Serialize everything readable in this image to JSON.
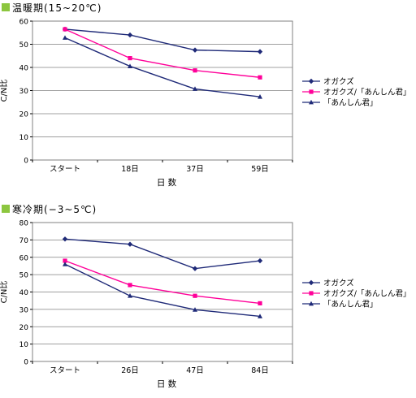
{
  "style": {
    "title_marker_color": "#8cc63f",
    "plot_border_color": "#808080",
    "grid_color": "#808080"
  },
  "chart_data": [
    {
      "type": "line",
      "title": "温暖期(15~20℃)",
      "xlabel": "日 数",
      "ylabel": "C/N比",
      "categories": [
        "スタート",
        "18日",
        "37日",
        "59日"
      ],
      "ylim": [
        0,
        60
      ],
      "yticks": [
        0,
        10,
        20,
        30,
        40,
        50,
        60
      ],
      "grid": true,
      "legend_position": "right",
      "series": [
        {
          "name": "オガクズ",
          "color": "#1f2a78",
          "marker": "diamond",
          "values": [
            56.5,
            54.0,
            47.5,
            46.8
          ]
        },
        {
          "name": "オガクズ/「あんしん君」",
          "color": "#ff0099",
          "marker": "square",
          "values": [
            56.5,
            44.0,
            38.7,
            35.7
          ]
        },
        {
          "name": "「あんしん君」",
          "color": "#1f2a78",
          "marker": "triangle",
          "values": [
            52.8,
            40.5,
            30.7,
            27.3
          ]
        }
      ]
    },
    {
      "type": "line",
      "title": "寒冷期(−3~5℃)",
      "xlabel": "日 数",
      "ylabel": "C/N比",
      "categories": [
        "スタート",
        "26日",
        "47日",
        "84日"
      ],
      "ylim": [
        0,
        80
      ],
      "yticks": [
        0,
        10,
        20,
        30,
        40,
        50,
        60,
        70,
        80
      ],
      "grid": true,
      "legend_position": "right",
      "series": [
        {
          "name": "オガクズ",
          "color": "#1f2a78",
          "marker": "diamond",
          "values": [
            70.5,
            67.5,
            53.5,
            58.0
          ]
        },
        {
          "name": "オガクズ/「あんしん君」",
          "color": "#ff0099",
          "marker": "square",
          "values": [
            58.0,
            44.0,
            37.8,
            33.5
          ]
        },
        {
          "name": "「あんしん君」",
          "color": "#1f2a78",
          "marker": "triangle",
          "values": [
            56.0,
            37.8,
            29.8,
            26.0
          ]
        }
      ]
    }
  ]
}
